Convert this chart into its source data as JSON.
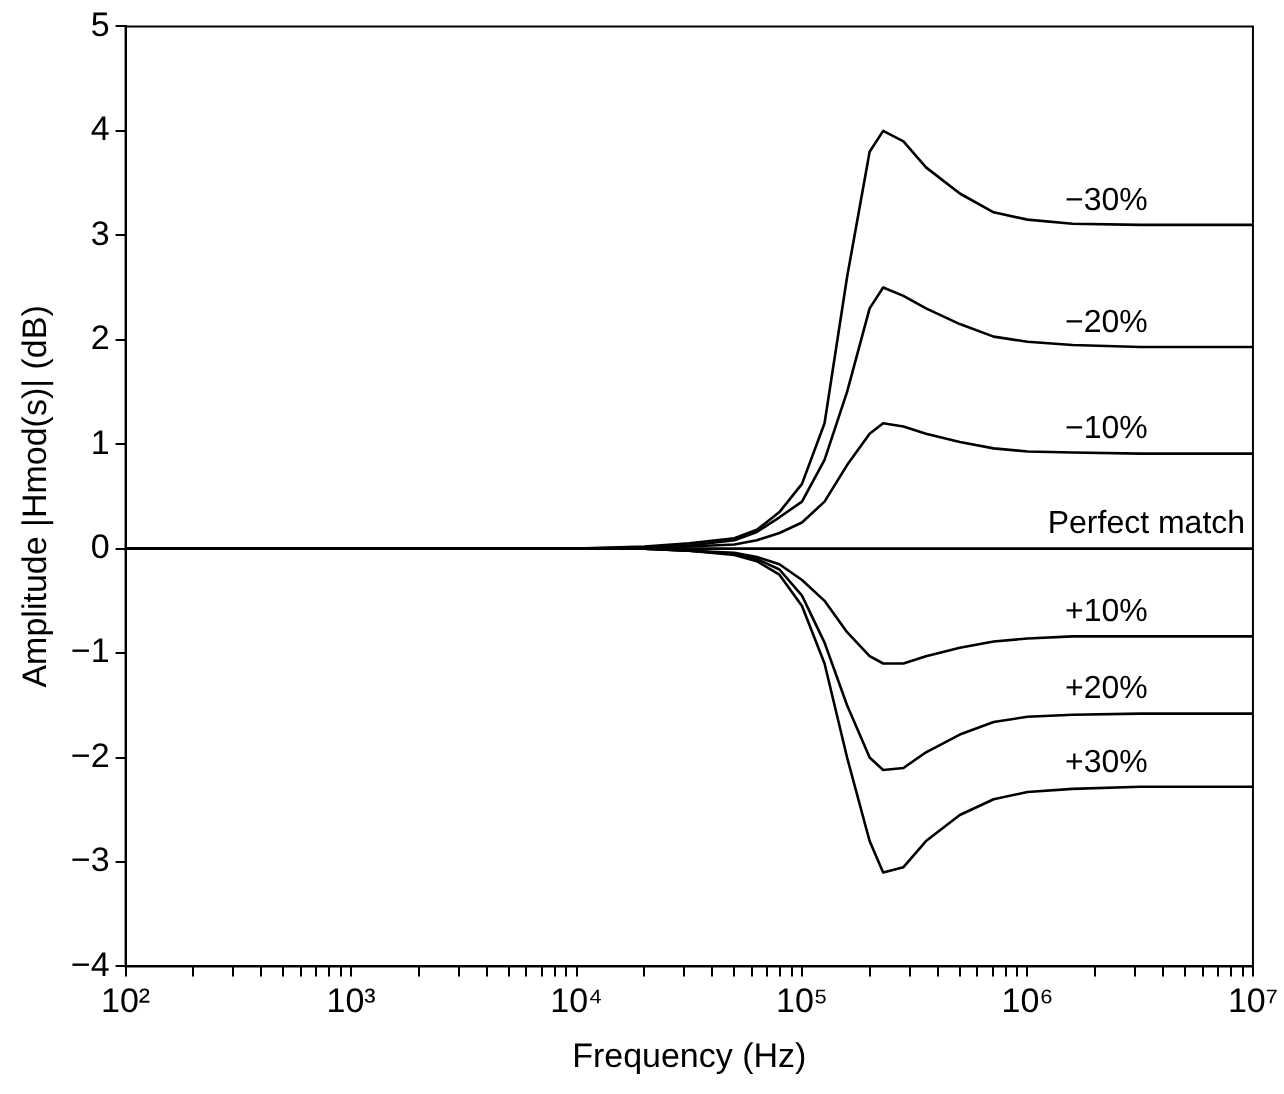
{
  "chart_data": {
    "type": "line",
    "xlabel": "Frequency (Hz)",
    "ylabel": "Amplitude |Hmod(s)| (dB)",
    "log": "x",
    "x": [
      100,
      1000,
      10000,
      20000,
      31623,
      50119,
      63096,
      79433,
      100000,
      125893,
      158489,
      199526,
      229087,
      281838,
      354813,
      501187,
      707946,
      1000000,
      1584893,
      3162278,
      10000000
    ],
    "series": [
      {
        "name": "−30%",
        "color": "#000000",
        "values": [
          0,
          0,
          0,
          0.02,
          0.05,
          0.1,
          0.18,
          0.35,
          0.62,
          1.2,
          2.6,
          3.8,
          4.0,
          3.9,
          3.65,
          3.4,
          3.22,
          3.15,
          3.11,
          3.1,
          3.1
        ]
      },
      {
        "name": "−20%",
        "color": "#000000",
        "values": [
          0,
          0,
          0,
          0.01,
          0.03,
          0.08,
          0.16,
          0.3,
          0.45,
          0.85,
          1.5,
          2.3,
          2.5,
          2.42,
          2.3,
          2.15,
          2.03,
          1.98,
          1.95,
          1.93,
          1.93
        ]
      },
      {
        "name": "−10%",
        "color": "#000000",
        "values": [
          0,
          0,
          0,
          0,
          0.02,
          0.04,
          0.08,
          0.15,
          0.25,
          0.45,
          0.8,
          1.1,
          1.2,
          1.17,
          1.1,
          1.02,
          0.96,
          0.93,
          0.92,
          0.91,
          0.91
        ]
      },
      {
        "name": "Perfect match",
        "color": "#000000",
        "values": [
          0,
          0,
          0,
          0,
          0,
          0,
          0,
          0,
          0,
          0,
          0,
          0,
          0,
          0,
          0,
          0,
          0,
          0,
          0,
          0,
          0
        ]
      },
      {
        "name": "+10%",
        "color": "#000000",
        "values": [
          0,
          0,
          0,
          0,
          -0.02,
          -0.04,
          -0.08,
          -0.15,
          -0.3,
          -0.5,
          -0.8,
          -1.03,
          -1.1,
          -1.1,
          -1.03,
          -0.95,
          -0.89,
          -0.86,
          -0.84,
          -0.84,
          -0.84
        ]
      },
      {
        "name": "+20%",
        "color": "#000000",
        "values": [
          0,
          0,
          0,
          0,
          -0.02,
          -0.05,
          -0.1,
          -0.2,
          -0.45,
          -0.9,
          -1.5,
          -2.0,
          -2.12,
          -2.1,
          -1.95,
          -1.78,
          -1.66,
          -1.61,
          -1.59,
          -1.58,
          -1.58
        ]
      },
      {
        "name": "+30%",
        "color": "#000000",
        "values": [
          0,
          0,
          0,
          0,
          -0.02,
          -0.06,
          -0.12,
          -0.25,
          -0.55,
          -1.1,
          -2.0,
          -2.8,
          -3.1,
          -3.05,
          -2.8,
          -2.55,
          -2.4,
          -2.33,
          -2.3,
          -2.28,
          -2.28
        ]
      }
    ],
    "xlim": [
      100,
      10000000
    ],
    "xticks": [
      {
        "value": 100,
        "label": "10²"
      },
      {
        "value": 200,
        "label": null
      },
      {
        "value": 300,
        "label": null
      },
      {
        "value": 400,
        "label": null
      },
      {
        "value": 500,
        "label": null
      },
      {
        "value": 600,
        "label": null
      },
      {
        "value": 700,
        "label": null
      },
      {
        "value": 800,
        "label": null
      },
      {
        "value": 900,
        "label": null
      },
      {
        "value": 1000,
        "label": "10³"
      },
      {
        "value": 2000,
        "label": null
      },
      {
        "value": 3000,
        "label": null
      },
      {
        "value": 4000,
        "label": null
      },
      {
        "value": 5000,
        "label": null
      },
      {
        "value": 6000,
        "label": null
      },
      {
        "value": 7000,
        "label": null
      },
      {
        "value": 8000,
        "label": null
      },
      {
        "value": 9000,
        "label": null
      },
      {
        "value": 10000,
        "label": "10⁴"
      },
      {
        "value": 20000,
        "label": null
      },
      {
        "value": 30000,
        "label": null
      },
      {
        "value": 40000,
        "label": null
      },
      {
        "value": 50000,
        "label": null
      },
      {
        "value": 60000,
        "label": null
      },
      {
        "value": 70000,
        "label": null
      },
      {
        "value": 80000,
        "label": null
      },
      {
        "value": 90000,
        "label": null
      },
      {
        "value": 100000,
        "label": "10⁵"
      },
      {
        "value": 200000,
        "label": null
      },
      {
        "value": 300000,
        "label": null
      },
      {
        "value": 400000,
        "label": null
      },
      {
        "value": 500000,
        "label": null
      },
      {
        "value": 600000,
        "label": null
      },
      {
        "value": 700000,
        "label": null
      },
      {
        "value": 800000,
        "label": null
      },
      {
        "value": 900000,
        "label": null
      },
      {
        "value": 1000000,
        "label": "10⁶"
      },
      {
        "value": 2000000,
        "label": null
      },
      {
        "value": 3000000,
        "label": null
      },
      {
        "value": 4000000,
        "label": null
      },
      {
        "value": 5000000,
        "label": null
      },
      {
        "value": 6000000,
        "label": null
      },
      {
        "value": 7000000,
        "label": null
      },
      {
        "value": 8000000,
        "label": null
      },
      {
        "value": 9000000,
        "label": null
      },
      {
        "value": 10000000,
        "label": "10⁷"
      }
    ],
    "ylim": [
      -4,
      5
    ],
    "yticks": [
      {
        "value": -4,
        "label": "−4"
      },
      {
        "value": -3,
        "label": "−3"
      },
      {
        "value": -2,
        "label": "−2"
      },
      {
        "value": -1,
        "label": "−1"
      },
      0,
      1,
      2,
      3,
      4,
      5
    ],
    "grid": false,
    "legend": false,
    "marker": "none",
    "line_style": "solid"
  }
}
